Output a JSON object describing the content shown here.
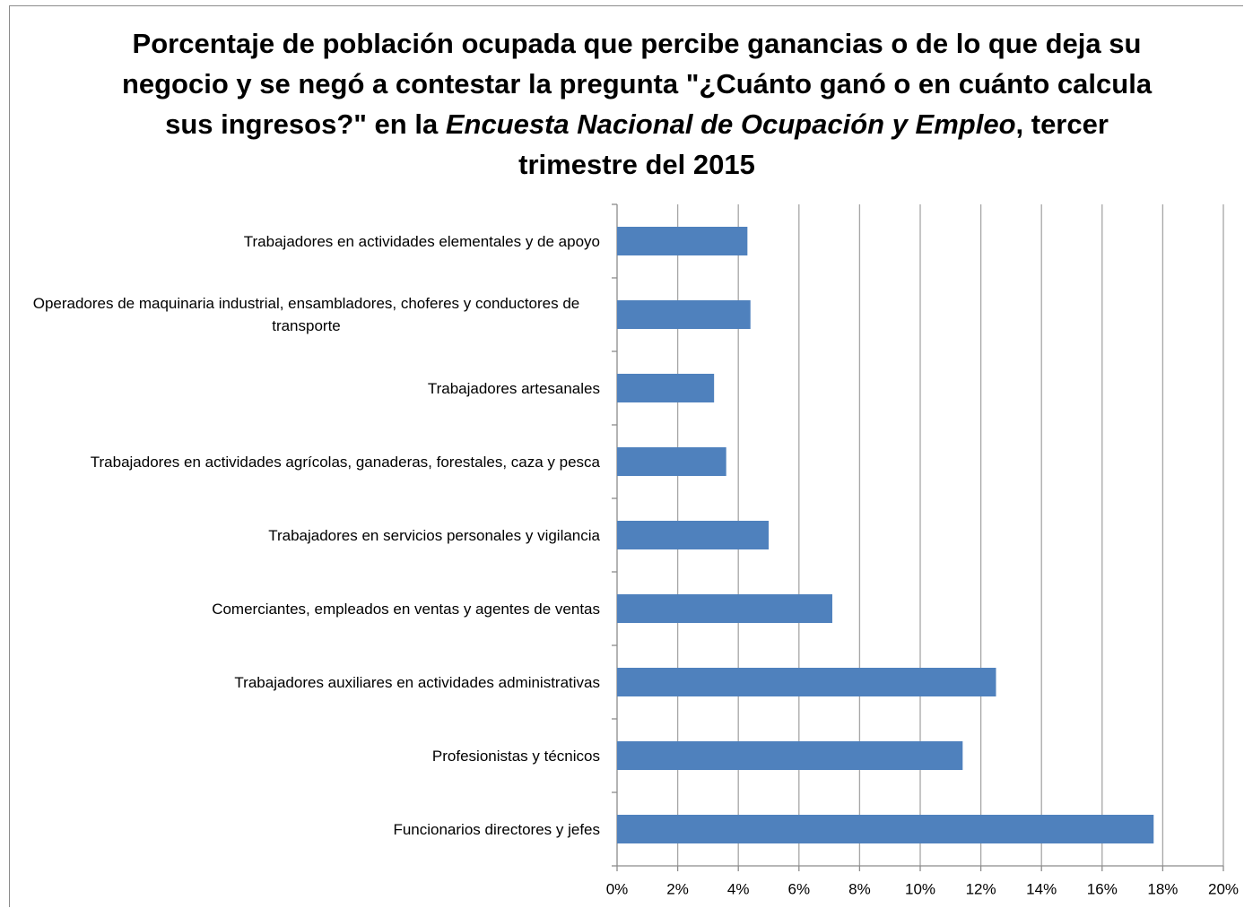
{
  "chart_data": {
    "type": "bar",
    "orientation": "horizontal",
    "title": [
      "Porcentaje de población ocupada que percibe ganancias o de lo que deja su negocio y se negó a contestar la pregunta \"¿Cuánto ganó o en cuánto calcula sus ingresos?\" en la ",
      "Encuesta Nacional de Ocupación y Empleo",
      ", tercer trimestre del 2015"
    ],
    "categories": [
      "Trabajadores en actividades elementales y de apoyo",
      "Operadores de maquinaria industrial, ensambladores, choferes y conductores de transporte",
      "Trabajadores artesanales",
      "Trabajadores en actividades agrícolas, ganaderas, forestales, caza y pesca",
      "Trabajadores en servicios personales y vigilancia",
      "Comerciantes, empleados en ventas y agentes de ventas",
      "Trabajadores auxiliares en actividades administrativas",
      "Profesionistas y técnicos",
      "Funcionarios directores y jefes"
    ],
    "values": [
      4.3,
      4.4,
      3.2,
      3.6,
      5.0,
      7.1,
      12.5,
      11.4,
      17.7
    ],
    "color": "#4f81bd",
    "xlim": [
      0,
      20
    ],
    "xticks": [
      {
        "value": 0,
        "label": "0%"
      },
      {
        "value": 2,
        "label": "2%"
      },
      {
        "value": 4,
        "label": "4%"
      },
      {
        "value": 6,
        "label": "6%"
      },
      {
        "value": 8,
        "label": "8%"
      },
      {
        "value": 10,
        "label": "10%"
      },
      {
        "value": 12,
        "label": "12%"
      },
      {
        "value": 14,
        "label": "14%"
      },
      {
        "value": 16,
        "label": "16%"
      },
      {
        "value": 18,
        "label": "18%"
      },
      {
        "value": 20,
        "label": "20%"
      }
    ],
    "grid": true
  }
}
